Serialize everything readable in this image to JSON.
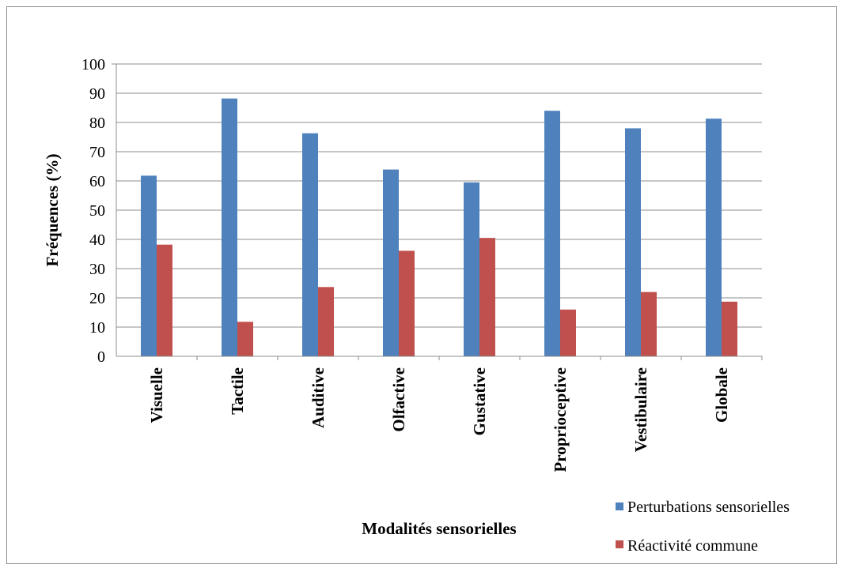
{
  "chart_data": {
    "type": "bar",
    "title": "",
    "xlabel": "Modalités sensorielles",
    "ylabel": "Fréquences (%)",
    "ylim": [
      0,
      100
    ],
    "yticks": [
      "0",
      "10",
      "20",
      "30",
      "40",
      "50",
      "60",
      "70",
      "80",
      "90",
      "100"
    ],
    "grid": true,
    "legend_position": "bottom-right",
    "categories": [
      "Visuelle",
      "Tactile",
      "Auditive",
      "Olfactive",
      "Gustative",
      "Proprioceptive",
      "Vestibulaire",
      "Globale"
    ],
    "series": [
      {
        "name": "Perturbations sensorielles",
        "color": "#4f81bd",
        "values": [
          61.8,
          88.2,
          76.3,
          63.9,
          59.5,
          84.0,
          78.0,
          81.3
        ]
      },
      {
        "name": "Réactivité commune",
        "color": "#c0504d",
        "values": [
          38.2,
          11.8,
          23.7,
          36.1,
          40.5,
          16.0,
          22.0,
          18.7
        ]
      }
    ]
  }
}
